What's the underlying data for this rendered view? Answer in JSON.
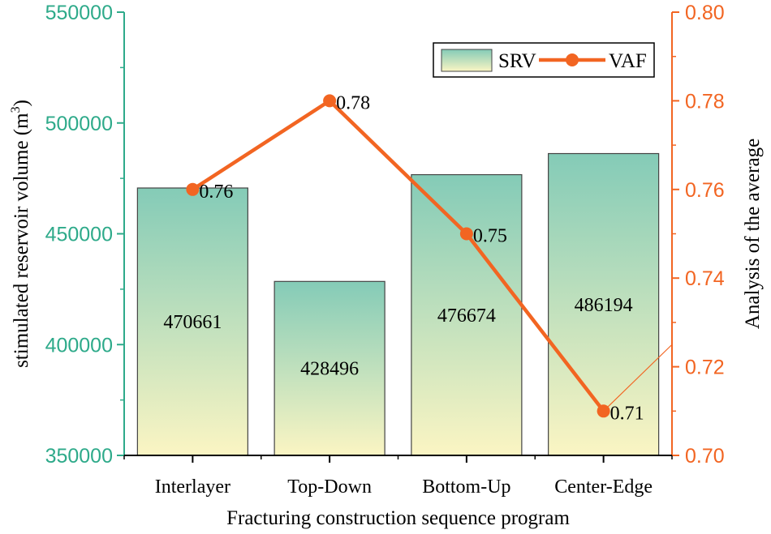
{
  "chart_data": {
    "type": "bar",
    "categories": [
      "Interlayer",
      "Top-Down",
      "Bottom-Up",
      "Center-Edge"
    ],
    "series": [
      {
        "name": "SRV",
        "type": "bar",
        "axis": "left",
        "values": [
          470661,
          428496,
          476674,
          486194
        ],
        "labels": [
          "470661",
          "428496",
          "476674",
          "486194"
        ]
      },
      {
        "name": "VAF",
        "type": "line",
        "axis": "right",
        "values": [
          0.76,
          0.78,
          0.75,
          0.71
        ],
        "labels": [
          "0.76",
          "0.78",
          "0.75",
          "0.71"
        ]
      }
    ],
    "xlabel": "Fracturing construction sequence program",
    "ylabel_left": {
      "main": "stimulated reservoir volume (m",
      "sup": "3",
      "close": ")"
    },
    "ylabel_right": "Analysis of the average",
    "ylim_left": [
      350000,
      550000
    ],
    "ylim_right": [
      0.7,
      0.8
    ],
    "left_ticks": [
      350000,
      400000,
      450000,
      500000,
      550000
    ],
    "left_tick_labels": [
      "350000",
      "400000",
      "450000",
      "500000",
      "550000"
    ],
    "right_ticks": [
      0.7,
      0.72,
      0.74,
      0.76,
      0.78,
      0.8
    ],
    "right_tick_labels": [
      "0.70",
      "0.72",
      "0.74",
      "0.76",
      "0.78",
      "0.80"
    ],
    "legend": {
      "position": "top-right",
      "entries": [
        "SRV",
        "VAF"
      ]
    },
    "colors": {
      "left_axis": "#2eaa8a",
      "right_axis": "#f26522",
      "line": "#f26522",
      "bar_top": "#84cbb7",
      "bar_bottom": "#fbf5c3",
      "bar_stroke": "#444444",
      "text": "#000000"
    }
  }
}
